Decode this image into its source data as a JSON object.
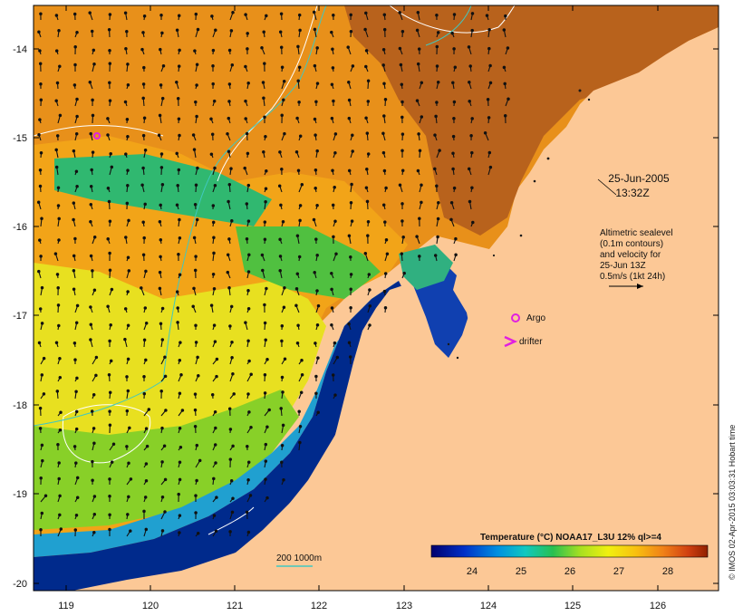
{
  "map": {
    "lon_ticks": [
      "119",
      "120",
      "121",
      "122",
      "123",
      "124",
      "125",
      "126"
    ],
    "lat_ticks": [
      "-14",
      "-15",
      "-16",
      "-17",
      "-18",
      "-19",
      "-20"
    ],
    "date_line1": "25-Jun-2005",
    "date_line2": "13:32Z",
    "altimetry_lines": [
      "Altimetric sealevel",
      "(0.1m contours)",
      "and velocity for",
      "25-Jun 13Z",
      "0.5m/s (1kt 24h)"
    ],
    "legend_argo": "Argo",
    "legend_drifter": "drifter",
    "depth_label": "200  1000m",
    "colorbar_title": "Temperature (°C) NOAA17_L3U 12% ql>=4",
    "colorbar_ticks": [
      "24",
      "25",
      "26",
      "27",
      "28"
    ],
    "credit": "© IMOS 02-Apr-2015 03:03:31 Hobart time",
    "colors": {
      "land": "#fcc896",
      "cold": "#002a8c",
      "warm": "#c24a0c",
      "argo": "#e020e0",
      "contour_cyan": "#40c8c0"
    }
  }
}
